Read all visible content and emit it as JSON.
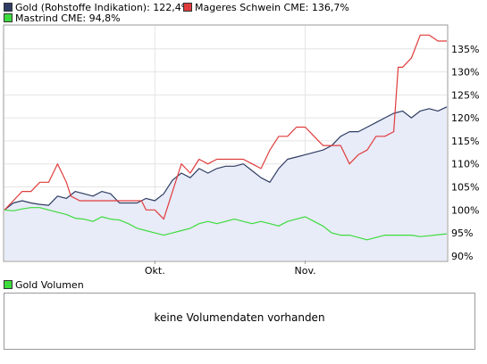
{
  "legend": [
    {
      "label": "Gold (Rohstoffe Indikation): 122,4%",
      "color": "#2e3d63"
    },
    {
      "label": "Mageres Schwein CME: 136,7%",
      "color": "#e03c3c"
    },
    {
      "label": "Mastrind CME: 94,8%",
      "color": "#3ddc3d"
    }
  ],
  "volume": {
    "legend_label": "Gold Volumen",
    "legend_color": "#3ddc3d",
    "message": "keine Volumendaten vorhanden"
  },
  "chart_data": {
    "type": "line",
    "ylim": [
      89,
      140
    ],
    "y_ticks": [
      90,
      95,
      100,
      105,
      110,
      115,
      120,
      125,
      130,
      135
    ],
    "y_tick_labels": [
      "90%",
      "95%",
      "100%",
      "105%",
      "110%",
      "115%",
      "120%",
      "125%",
      "130%",
      "135%"
    ],
    "x_range": [
      0,
      100
    ],
    "x_ticks": [
      34,
      68
    ],
    "x_tick_labels": [
      "Okt.",
      "Nov."
    ],
    "grid": true,
    "series": [
      {
        "name": "Gold (Rohstoffe Indikation)",
        "color": "#2e3d63",
        "fill": "#e8ebf8",
        "x": [
          0,
          2,
          4,
          6,
          8,
          10,
          12,
          14,
          16,
          18,
          20,
          22,
          24,
          26,
          28,
          30,
          32,
          34,
          36,
          38,
          40,
          42,
          44,
          46,
          48,
          50,
          52,
          54,
          56,
          58,
          60,
          62,
          64,
          66,
          68,
          70,
          72,
          74,
          76,
          78,
          80,
          82,
          84,
          86,
          88,
          90,
          92,
          94,
          96,
          98,
          100
        ],
        "values": [
          100,
          101.5,
          102,
          101.5,
          101.2,
          101,
          103,
          102.5,
          104,
          103.5,
          103,
          104,
          103.5,
          101.5,
          101.5,
          101.5,
          102.5,
          102,
          103.5,
          106.5,
          108,
          107,
          109,
          108,
          109,
          109.5,
          109.5,
          110,
          108.5,
          107,
          106,
          109,
          111,
          111.5,
          112,
          112.5,
          113,
          114,
          116,
          117,
          117,
          118,
          119,
          120,
          121,
          121.5,
          120,
          121.5,
          122,
          121.5,
          122.4
        ]
      },
      {
        "name": "Mageres Schwein CME",
        "color": "#e03c3c",
        "x": [
          0,
          2,
          4,
          6,
          8,
          10,
          12,
          14,
          15,
          17,
          19,
          21,
          23,
          25,
          27,
          29,
          31,
          32,
          34,
          36,
          38,
          40,
          42,
          44,
          46,
          48,
          50,
          52,
          54,
          56,
          58,
          60,
          62,
          64,
          66,
          68,
          70,
          72,
          74,
          76,
          78,
          80,
          82,
          84,
          86,
          88,
          89,
          90,
          92,
          94,
          96,
          98,
          100
        ],
        "values": [
          100,
          102,
          104,
          104,
          106,
          106,
          110,
          106,
          103,
          102,
          102,
          102,
          102,
          102,
          102,
          102,
          102,
          100,
          100,
          98,
          104,
          110,
          108,
          111,
          110,
          111,
          111,
          111,
          111,
          110,
          109,
          113,
          116,
          116,
          118,
          118,
          116,
          114,
          114,
          114,
          110,
          112,
          113,
          116,
          116,
          117,
          131,
          131,
          133,
          138,
          138,
          136.7,
          136.7
        ]
      },
      {
        "name": "Mastrind CME",
        "color": "#3ddc3d",
        "x": [
          0,
          2,
          4,
          6,
          8,
          10,
          12,
          14,
          16,
          18,
          20,
          22,
          24,
          26,
          28,
          30,
          32,
          34,
          36,
          38,
          40,
          42,
          44,
          46,
          48,
          50,
          52,
          54,
          56,
          58,
          60,
          62,
          64,
          66,
          68,
          70,
          72,
          74,
          76,
          78,
          80,
          82,
          84,
          86,
          88,
          90,
          92,
          94,
          96,
          98,
          100
        ],
        "values": [
          100,
          99.8,
          100.2,
          100.5,
          100.5,
          100,
          99.5,
          99,
          98.2,
          98,
          97.5,
          98.5,
          98,
          97.8,
          97,
          96,
          95.5,
          95,
          94.5,
          95,
          95.5,
          96,
          97,
          97.5,
          97,
          97.5,
          98,
          97.5,
          97,
          97.5,
          97,
          96.5,
          97.5,
          98,
          98.5,
          97.5,
          96.5,
          95,
          94.5,
          94.5,
          94,
          93.5,
          94,
          94.5,
          94.5,
          94.5,
          94.5,
          94.2,
          94.4,
          94.6,
          94.8
        ]
      }
    ]
  }
}
